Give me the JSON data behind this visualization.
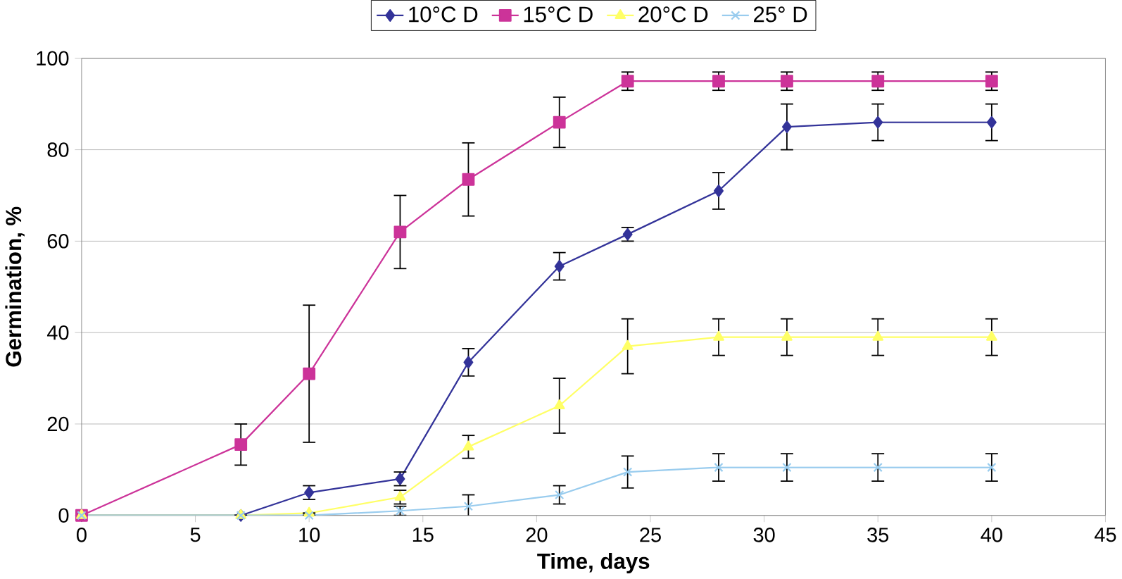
{
  "chart_data": {
    "type": "line",
    "xlabel": "Time, days",
    "ylabel": "Germination, %",
    "x": [
      0,
      7,
      10,
      14,
      17,
      21,
      24,
      28,
      31,
      35,
      40
    ],
    "series": [
      {
        "name": "10°C D",
        "color": "#333399",
        "marker": "diamond",
        "values": [
          0,
          0,
          5,
          8,
          33.5,
          54.5,
          61.5,
          71,
          85,
          86,
          86
        ],
        "errors": [
          null,
          null,
          1.5,
          1.5,
          3,
          3,
          1.5,
          4,
          5,
          4,
          4
        ]
      },
      {
        "name": "15°C D",
        "color": "#cc3399",
        "marker": "square",
        "values": [
          0,
          15.5,
          31,
          62,
          73.5,
          86,
          95,
          95,
          95,
          95,
          95
        ],
        "errors": [
          null,
          4.5,
          15,
          8,
          8,
          5.5,
          2,
          2,
          2,
          2,
          2
        ]
      },
      {
        "name": "20°C D",
        "color": "#ffff66",
        "marker": "triangle",
        "values": [
          0,
          0,
          0.5,
          4,
          15,
          24,
          37,
          39,
          39,
          39,
          39
        ],
        "errors": [
          null,
          null,
          null,
          1.5,
          2.5,
          6,
          6,
          4,
          4,
          4,
          4
        ]
      },
      {
        "name": "25° D",
        "color": "#99ccee",
        "marker": "cross",
        "values": [
          0,
          0,
          0,
          1,
          2,
          4.5,
          9.5,
          10.5,
          10.5,
          10.5,
          10.5
        ],
        "errors": [
          null,
          null,
          null,
          1,
          2.5,
          2,
          3.5,
          3,
          3,
          3,
          3
        ]
      }
    ],
    "xlim": [
      0,
      45
    ],
    "ylim": [
      0,
      100
    ],
    "xticks": [
      0,
      5,
      10,
      15,
      20,
      25,
      30,
      35,
      40,
      45
    ],
    "yticks": [
      0,
      20,
      40,
      60,
      80,
      100
    ],
    "grid": "y",
    "legend": "top"
  }
}
